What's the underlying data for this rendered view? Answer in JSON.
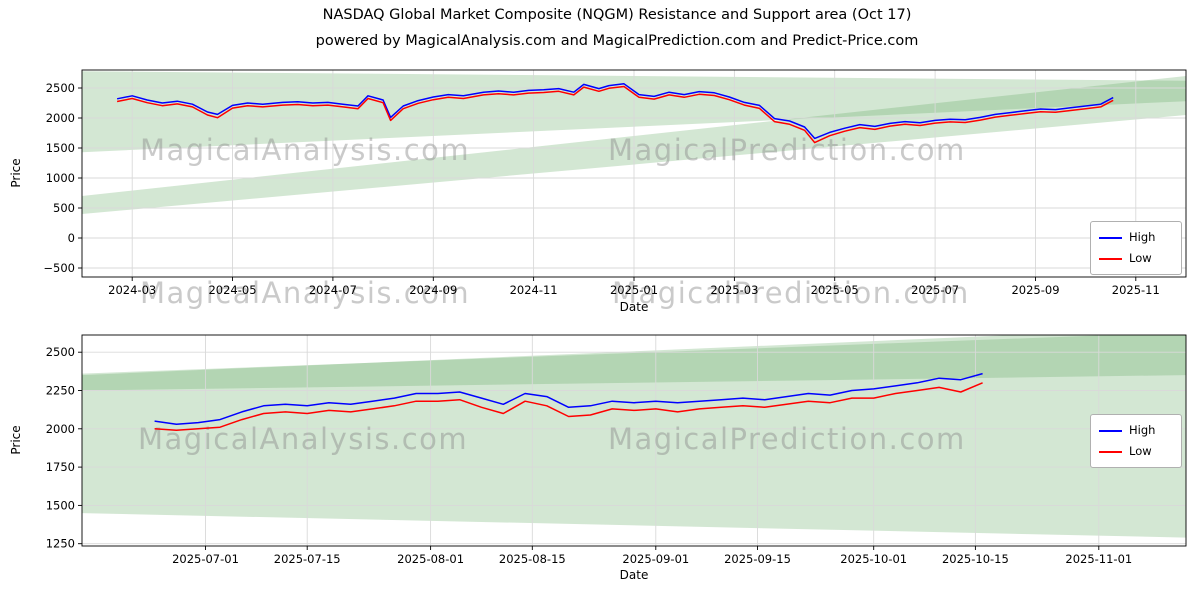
{
  "figure": {
    "title": "NASDAQ Global Market Composite (NQGM) Resistance and Support area (Oct 17)",
    "subtitle": "powered by MagicalAnalysis.com and MagicalPrediction.com and Predict-Price.com"
  },
  "watermark": {
    "analysis": "MagicalAnalysis.com",
    "prediction": "MagicalPrediction.com",
    "color": "#8a8a8a",
    "opacity": 0.45
  },
  "colors": {
    "grid": "#d9d9d9",
    "spine": "#000000",
    "tick_label": "#000000"
  },
  "chart_data": [
    {
      "type": "line",
      "xlabel": "Date",
      "ylabel": "Price",
      "x_unit": "months since 2024-03-01",
      "xlim": [
        -1,
        21
      ],
      "ylim": [
        -650,
        2800
      ],
      "grid": true,
      "legend_position": "center right",
      "xtick_vals": [
        0,
        2,
        4,
        6,
        8,
        10,
        12,
        14,
        16,
        18,
        20
      ],
      "xtick_labels": [
        "2024-03",
        "2024-05",
        "2024-07",
        "2024-09",
        "2024-11",
        "2025-01",
        "2025-03",
        "2025-05",
        "2025-07",
        "2025-09",
        "2025-11"
      ],
      "ytick_vals": [
        -500,
        0,
        500,
        1000,
        1500,
        2000,
        2500
      ],
      "ytick_labels": [
        "−500",
        "0",
        "500",
        "1000",
        "1500",
        "2000",
        "2500"
      ],
      "band_color": "#60a960",
      "band_opacity": 0.28,
      "x": [
        -0.3,
        0,
        0.3,
        0.6,
        0.9,
        1.2,
        1.5,
        1.7,
        2.0,
        2.3,
        2.6,
        3.0,
        3.3,
        3.6,
        3.9,
        4.2,
        4.5,
        4.7,
        5.0,
        5.15,
        5.4,
        5.7,
        6.0,
        6.3,
        6.6,
        7.0,
        7.3,
        7.6,
        7.9,
        8.2,
        8.5,
        8.8,
        9.0,
        9.3,
        9.5,
        9.8,
        10.1,
        10.4,
        10.7,
        11.0,
        11.3,
        11.6,
        11.9,
        12.2,
        12.5,
        12.8,
        13.1,
        13.4,
        13.6,
        13.9,
        14.2,
        14.5,
        14.8,
        15.1,
        15.4,
        15.7,
        16.0,
        16.3,
        16.6,
        16.9,
        17.2,
        17.5,
        17.8,
        18.1,
        18.4,
        18.7,
        19.0,
        19.3,
        19.55
      ],
      "series": [
        {
          "name": "High",
          "color": "#0000ff",
          "values": [
            2320,
            2370,
            2300,
            2250,
            2280,
            2230,
            2100,
            2060,
            2210,
            2250,
            2230,
            2260,
            2270,
            2250,
            2260,
            2230,
            2200,
            2370,
            2300,
            2010,
            2200,
            2290,
            2350,
            2390,
            2370,
            2430,
            2450,
            2430,
            2460,
            2470,
            2490,
            2430,
            2560,
            2490,
            2540,
            2570,
            2390,
            2360,
            2430,
            2390,
            2440,
            2420,
            2350,
            2260,
            2210,
            1990,
            1950,
            1850,
            1660,
            1760,
            1830,
            1890,
            1860,
            1910,
            1940,
            1920,
            1960,
            1980,
            1970,
            2010,
            2060,
            2090,
            2120,
            2150,
            2140,
            2170,
            2200,
            2230,
            2340
          ]
        },
        {
          "name": "Low",
          "color": "#ff0000",
          "values": [
            2275,
            2325,
            2255,
            2205,
            2235,
            2185,
            2050,
            2005,
            2165,
            2205,
            2185,
            2215,
            2225,
            2205,
            2215,
            2185,
            2155,
            2325,
            2255,
            1960,
            2155,
            2245,
            2305,
            2345,
            2325,
            2385,
            2405,
            2385,
            2415,
            2425,
            2445,
            2385,
            2515,
            2445,
            2495,
            2525,
            2345,
            2315,
            2385,
            2345,
            2395,
            2375,
            2305,
            2215,
            2160,
            1940,
            1895,
            1795,
            1590,
            1705,
            1780,
            1840,
            1810,
            1865,
            1895,
            1875,
            1915,
            1935,
            1925,
            1965,
            2015,
            2045,
            2075,
            2105,
            2095,
            2125,
            2155,
            2185,
            2295
          ]
        }
      ],
      "bands": [
        [
          [
            -1,
            2780
          ],
          [
            21,
            2620
          ],
          [
            21,
            2280
          ],
          [
            -1,
            1430
          ]
        ],
        [
          [
            -1,
            700
          ],
          [
            21,
            2700
          ],
          [
            21,
            2050
          ],
          [
            -1,
            400
          ]
        ]
      ]
    },
    {
      "type": "line",
      "xlabel": "Date",
      "ylabel": "Price",
      "x_unit": "days since 2025-07-01",
      "xlim": [
        -17,
        135
      ],
      "ylim": [
        1235,
        2612
      ],
      "grid": true,
      "legend_position": "center right",
      "xtick_vals": [
        0,
        14,
        31,
        45,
        62,
        76,
        92,
        106,
        123
      ],
      "xtick_labels": [
        "2025-07-01",
        "2025-07-15",
        "2025-08-01",
        "2025-08-15",
        "2025-09-01",
        "2025-09-15",
        "2025-10-01",
        "2025-10-15",
        "2025-11-01"
      ],
      "ytick_vals": [
        1250,
        1500,
        1750,
        2000,
        2250,
        2500
      ],
      "ytick_labels": [
        "1250",
        "1500",
        "1750",
        "2000",
        "2250",
        "2500"
      ],
      "band_color": "#60a960",
      "band_opacity": 0.28,
      "x": [
        -7,
        -4,
        -1,
        2,
        5,
        8,
        11,
        14,
        17,
        20,
        23,
        26,
        29,
        32,
        35,
        38,
        41,
        44,
        47,
        50,
        53,
        56,
        59,
        62,
        65,
        68,
        71,
        74,
        77,
        80,
        83,
        86,
        89,
        92,
        95,
        98,
        101,
        104,
        107
      ],
      "series": [
        {
          "name": "High",
          "color": "#0000ff",
          "values": [
            2050,
            2030,
            2040,
            2060,
            2110,
            2150,
            2160,
            2150,
            2170,
            2160,
            2180,
            2200,
            2230,
            2230,
            2240,
            2200,
            2160,
            2230,
            2210,
            2140,
            2150,
            2180,
            2170,
            2180,
            2170,
            2180,
            2190,
            2200,
            2190,
            2210,
            2230,
            2220,
            2250,
            2260,
            2280,
            2300,
            2330,
            2320,
            2360
          ]
        },
        {
          "name": "Low",
          "color": "#ff0000",
          "values": [
            2000,
            1990,
            2000,
            2010,
            2060,
            2100,
            2110,
            2100,
            2120,
            2110,
            2130,
            2150,
            2180,
            2180,
            2190,
            2140,
            2100,
            2180,
            2150,
            2080,
            2090,
            2130,
            2120,
            2130,
            2110,
            2130,
            2140,
            2150,
            2140,
            2160,
            2180,
            2170,
            2200,
            2200,
            2230,
            2250,
            2270,
            2240,
            2300
          ]
        }
      ],
      "bands": [
        [
          [
            -17,
            2360
          ],
          [
            135,
            2630
          ],
          [
            135,
            1290
          ],
          [
            -17,
            1450
          ]
        ],
        [
          [
            -17,
            2350
          ],
          [
            135,
            2660
          ],
          [
            135,
            2350
          ],
          [
            -17,
            2250
          ]
        ]
      ]
    }
  ]
}
